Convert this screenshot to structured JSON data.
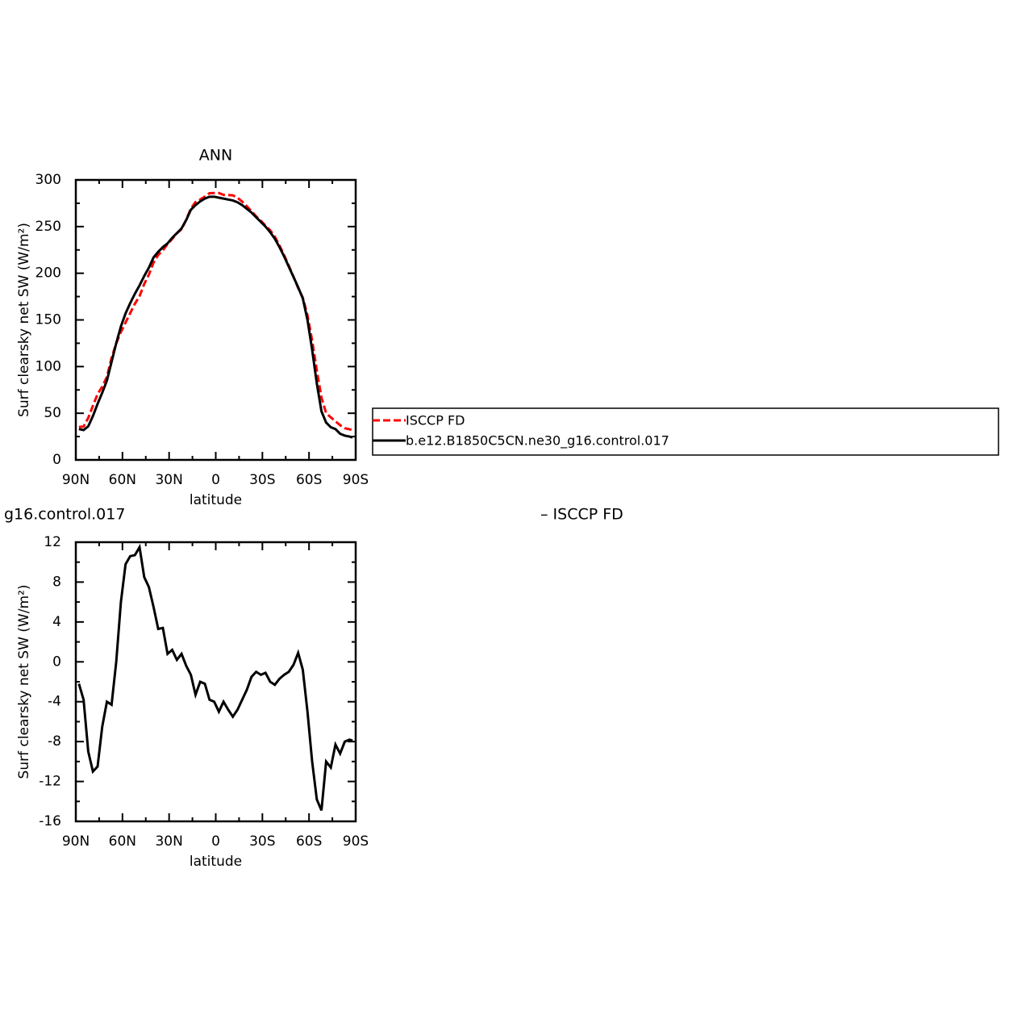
{
  "chart_data": [
    {
      "type": "line",
      "title": "ANN",
      "xlabel": "latitude",
      "ylabel": "Surf clearsky net SW (W/m²)",
      "x": [
        88,
        85,
        82,
        79,
        76,
        73,
        70,
        67,
        64,
        61,
        58,
        55,
        52,
        49,
        46,
        43,
        40,
        37,
        34,
        31,
        28,
        25,
        22,
        19,
        16,
        13,
        10,
        7,
        4,
        1,
        -2,
        -5,
        -8,
        -11,
        -14,
        -17,
        -20,
        -23,
        -26,
        -29,
        -32,
        -35,
        -38,
        -41,
        -44,
        -47,
        -50,
        -53,
        -56,
        -59,
        -62,
        -65,
        -68,
        -71,
        -74,
        -77,
        -80,
        -83,
        -86,
        -88
      ],
      "series": [
        {
          "name": "ISCCP FD",
          "color": "#ff0000",
          "dash": true,
          "values": [
            35.2,
            35.8,
            45,
            58,
            70.5,
            78.5,
            89,
            109.3,
            125,
            137,
            147.2,
            157.4,
            167.3,
            175.5,
            188.5,
            198.5,
            211.5,
            219.7,
            224.6,
            231.2,
            236.8,
            242.8,
            247.2,
            257.4,
            269.3,
            276.3,
            279,
            282.2,
            285.8,
            286,
            286,
            284,
            283.8,
            283.5,
            280.8,
            276.8,
            271.8,
            266.5,
            261,
            256.3,
            251.1,
            246,
            239.3,
            229.7,
            219.3,
            208,
            196.3,
            184.1,
            173.8,
            155,
            128,
            95.8,
            66.9,
            50,
            45.6,
            41.3,
            37.2,
            34,
            32.8,
            31.9
          ]
        },
        {
          "name": "b.e12.B1850C5CN.ne30_g16.control.017",
          "color": "#000000",
          "dash": false,
          "values": [
            33,
            32,
            36,
            47,
            60,
            72,
            85,
            105,
            125,
            143,
            157,
            168,
            178,
            187,
            197,
            206,
            217,
            223,
            228,
            232,
            238,
            243,
            248,
            257,
            268,
            273,
            277,
            280,
            282,
            282,
            281,
            280,
            279,
            278,
            276,
            273,
            269,
            265,
            260,
            255,
            250,
            244,
            237,
            228,
            218,
            207,
            196,
            185,
            173,
            150,
            118,
            82,
            52,
            40,
            35,
            33,
            28,
            26,
            25,
            24
          ]
        }
      ],
      "xlim": [
        90,
        -90
      ],
      "xticks": [
        {
          "value": 90,
          "label": "90N"
        },
        {
          "value": 60,
          "label": "60N"
        },
        {
          "value": 30,
          "label": "30N"
        },
        0,
        {
          "value": -30,
          "label": "30S"
        },
        {
          "value": -60,
          "label": "60S"
        },
        {
          "value": -90,
          "label": "90S"
        }
      ],
      "xminorticks": [
        75,
        45,
        15,
        -15,
        -45,
        -75
      ],
      "ylim": [
        0,
        300
      ],
      "yticks": [
        0,
        50,
        100,
        150,
        200,
        250,
        300
      ],
      "yminorticks": [
        25,
        75,
        125,
        175,
        225,
        275
      ]
    },
    {
      "type": "line",
      "title_parts": [
        "g16.control.017",
        "– ISCCP FD"
      ],
      "xlabel": "latitude",
      "ylabel": "Surf clearsky net SW (W/m²)",
      "x": [
        88,
        85,
        82,
        79,
        76,
        73,
        70,
        67,
        64,
        61,
        58,
        55,
        52,
        49,
        46,
        43,
        40,
        37,
        34,
        31,
        28,
        25,
        22,
        19,
        16,
        13,
        10,
        7,
        4,
        1,
        -2,
        -5,
        -8,
        -11,
        -14,
        -17,
        -20,
        -23,
        -26,
        -29,
        -32,
        -35,
        -38,
        -41,
        -44,
        -47,
        -50,
        -53,
        -56,
        -59,
        -62,
        -65,
        -68,
        -71,
        -74,
        -77,
        -80,
        -83,
        -86,
        -88
      ],
      "series": [
        {
          "color": "#000000",
          "dash": false,
          "values": [
            -2.2,
            -3.8,
            -9,
            -11,
            -10.5,
            -6.5,
            -4,
            -4.3,
            0,
            6,
            9.8,
            10.6,
            10.7,
            11.5,
            8.5,
            7.5,
            5.5,
            3.3,
            3.4,
            0.8,
            1.2,
            0.2,
            0.8,
            -0.4,
            -1.3,
            -3.3,
            -2,
            -2.2,
            -3.8,
            -4,
            -5,
            -4,
            -4.8,
            -5.5,
            -4.8,
            -3.8,
            -2.8,
            -1.5,
            -1,
            -1.3,
            -1.1,
            -2,
            -2.3,
            -1.7,
            -1.3,
            -1,
            -0.3,
            0.9,
            -0.8,
            -5,
            -10,
            -13.8,
            -14.9,
            -10,
            -10.6,
            -8.3,
            -9.2,
            -8,
            -7.8,
            -7.9
          ]
        }
      ],
      "xlim": [
        90,
        -90
      ],
      "xticks": [
        {
          "value": 90,
          "label": "90N"
        },
        {
          "value": 60,
          "label": "60N"
        },
        {
          "value": 30,
          "label": "30N"
        },
        0,
        {
          "value": -30,
          "label": "30S"
        },
        {
          "value": -60,
          "label": "60S"
        },
        {
          "value": -90,
          "label": "90S"
        }
      ],
      "xminorticks": [
        75,
        45,
        15,
        -15,
        -45,
        -75
      ],
      "ylim": [
        -16,
        12
      ],
      "yticks": [
        -16,
        -12,
        -8,
        -4,
        0,
        4,
        8,
        12
      ],
      "yminorticks": [
        -14,
        -10,
        -6,
        -2,
        2,
        6,
        10
      ]
    }
  ]
}
